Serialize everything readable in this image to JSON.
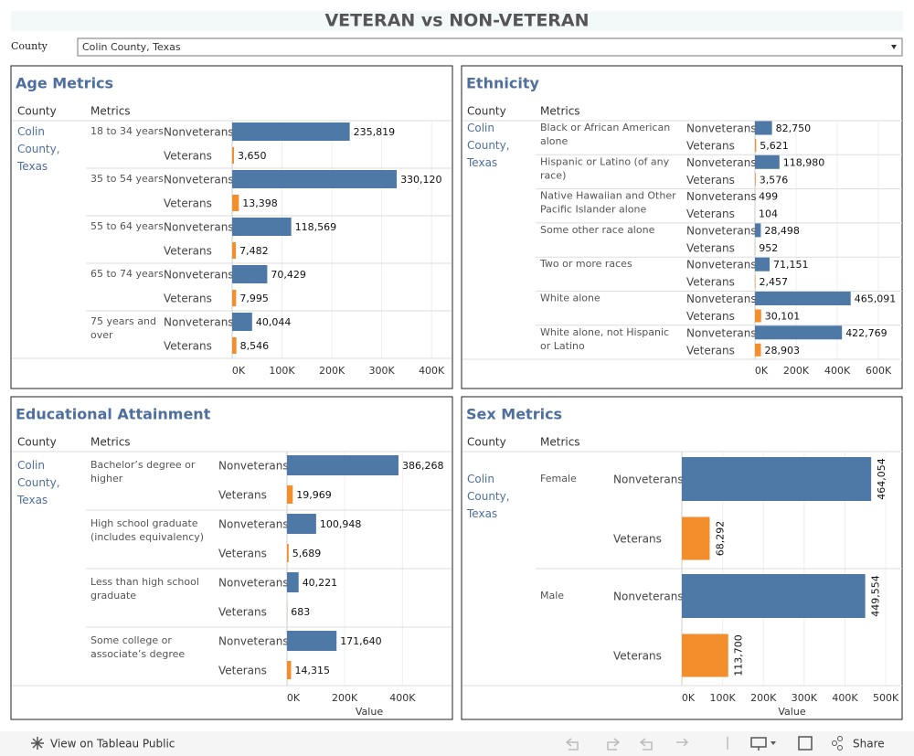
{
  "title": "VETERAN vs NON-VETERAN",
  "filter": {
    "label": "County",
    "value": "Colin County, Texas"
  },
  "footer": {
    "view": "View on Tableau Public",
    "share": "Share"
  },
  "chart_data": [
    {
      "type": "bar",
      "title": "Age Metrics",
      "column_headers": [
        "County",
        "Metrics"
      ],
      "county": "Colin County, Texas",
      "categories": [
        "18 to 34 years",
        "35 to 54 years",
        "55 to 64 years",
        "65 to 74 years",
        "75 years and over"
      ],
      "series": [
        {
          "name": "Nonveterans",
          "color": "#4e79a7",
          "values": [
            235819,
            330120,
            118569,
            70429,
            40044
          ],
          "value_labels": [
            "235,819",
            "330,120",
            "118,569",
            "70,429",
            "40,044"
          ]
        },
        {
          "name": "Veterans",
          "color": "#f28e2b",
          "values": [
            3650,
            13398,
            7482,
            7995,
            8546
          ],
          "value_labels": [
            "3,650",
            "13,398",
            "7,482",
            "7,995",
            "8,546"
          ]
        }
      ],
      "xlim": [
        0,
        440000
      ],
      "xticks": [
        {
          "value": 0,
          "label": "0K"
        },
        {
          "value": 100000,
          "label": "100K"
        },
        {
          "value": 200000,
          "label": "200K"
        },
        {
          "value": 300000,
          "label": "300K"
        },
        {
          "value": 400000,
          "label": "400K"
        }
      ],
      "grid": true
    },
    {
      "type": "bar",
      "title": "Ethnicity",
      "column_headers": [
        "County",
        "Metrics"
      ],
      "county": "Colin County, Texas",
      "categories": [
        "Black or African American alone",
        "Hispanic or Latino (of any race)",
        "Native Hawaiian and Other Pacific Islander alone",
        "Some other race alone",
        "Two or more races",
        "White alone",
        "White alone, not Hispanic or Latino"
      ],
      "series": [
        {
          "name": "Nonveterans",
          "color": "#4e79a7",
          "values": [
            82750,
            118980,
            499,
            28498,
            71151,
            465091,
            422769
          ],
          "value_labels": [
            "82,750",
            "118,980",
            "499",
            "28,498",
            "71,151",
            "465,091",
            "422,769"
          ]
        },
        {
          "name": "Veterans",
          "color": "#f28e2b",
          "values": [
            5621,
            3576,
            104,
            952,
            2457,
            30101,
            28903
          ],
          "value_labels": [
            "5,621",
            "3,576",
            "104",
            "952",
            "2,457",
            "30,101",
            "28,903"
          ]
        }
      ],
      "xlim": [
        0,
        715000
      ],
      "xticks": [
        {
          "value": 0,
          "label": "0K"
        },
        {
          "value": 200000,
          "label": "200K"
        },
        {
          "value": 400000,
          "label": "400K"
        },
        {
          "value": 600000,
          "label": "600K"
        }
      ],
      "grid": true
    },
    {
      "type": "bar",
      "title": "Educational Attainment",
      "column_headers": [
        "County",
        "Metrics"
      ],
      "county": "Colin County, Texas",
      "categories": [
        "Bachelor’s degree or higher",
        "High school graduate (includes equivalency)",
        "Less than high school graduate",
        "Some college or associate’s degree"
      ],
      "series": [
        {
          "name": "Nonveterans",
          "color": "#4e79a7",
          "values": [
            386268,
            100948,
            40221,
            171640
          ],
          "value_labels": [
            "386,268",
            "100,948",
            "40,221",
            "171,640"
          ]
        },
        {
          "name": "Veterans",
          "color": "#f28e2b",
          "values": [
            19969,
            5689,
            683,
            14315
          ],
          "value_labels": [
            "19,969",
            "5,689",
            "683",
            "14,315"
          ]
        }
      ],
      "xlim": [
        0,
        570000
      ],
      "xticks": [
        {
          "value": 0,
          "label": "0K"
        },
        {
          "value": 200000,
          "label": "200K"
        },
        {
          "value": 400000,
          "label": "400K"
        }
      ],
      "xlabel": "Value",
      "grid": true
    },
    {
      "type": "bar",
      "title": "Sex Metrics",
      "column_headers": [
        "County",
        "Metrics"
      ],
      "county": "Colin County, Texas",
      "categories": [
        "Female",
        "Male"
      ],
      "series": [
        {
          "name": "Nonveterans",
          "color": "#4e79a7",
          "values": [
            464054,
            449554
          ],
          "value_labels": [
            "464,054",
            "449,554"
          ]
        },
        {
          "name": "Veterans",
          "color": "#f28e2b",
          "values": [
            68292,
            113700
          ],
          "value_labels": [
            "68,292",
            "113,700"
          ]
        }
      ],
      "xlim": [
        0,
        540000
      ],
      "xticks": [
        {
          "value": 0,
          "label": "0K"
        },
        {
          "value": 100000,
          "label": "100K"
        },
        {
          "value": 200000,
          "label": "200K"
        },
        {
          "value": 300000,
          "label": "300K"
        },
        {
          "value": 400000,
          "label": "400K"
        },
        {
          "value": 500000,
          "label": "500K"
        }
      ],
      "xlabel": "Value",
      "grid": true
    }
  ]
}
